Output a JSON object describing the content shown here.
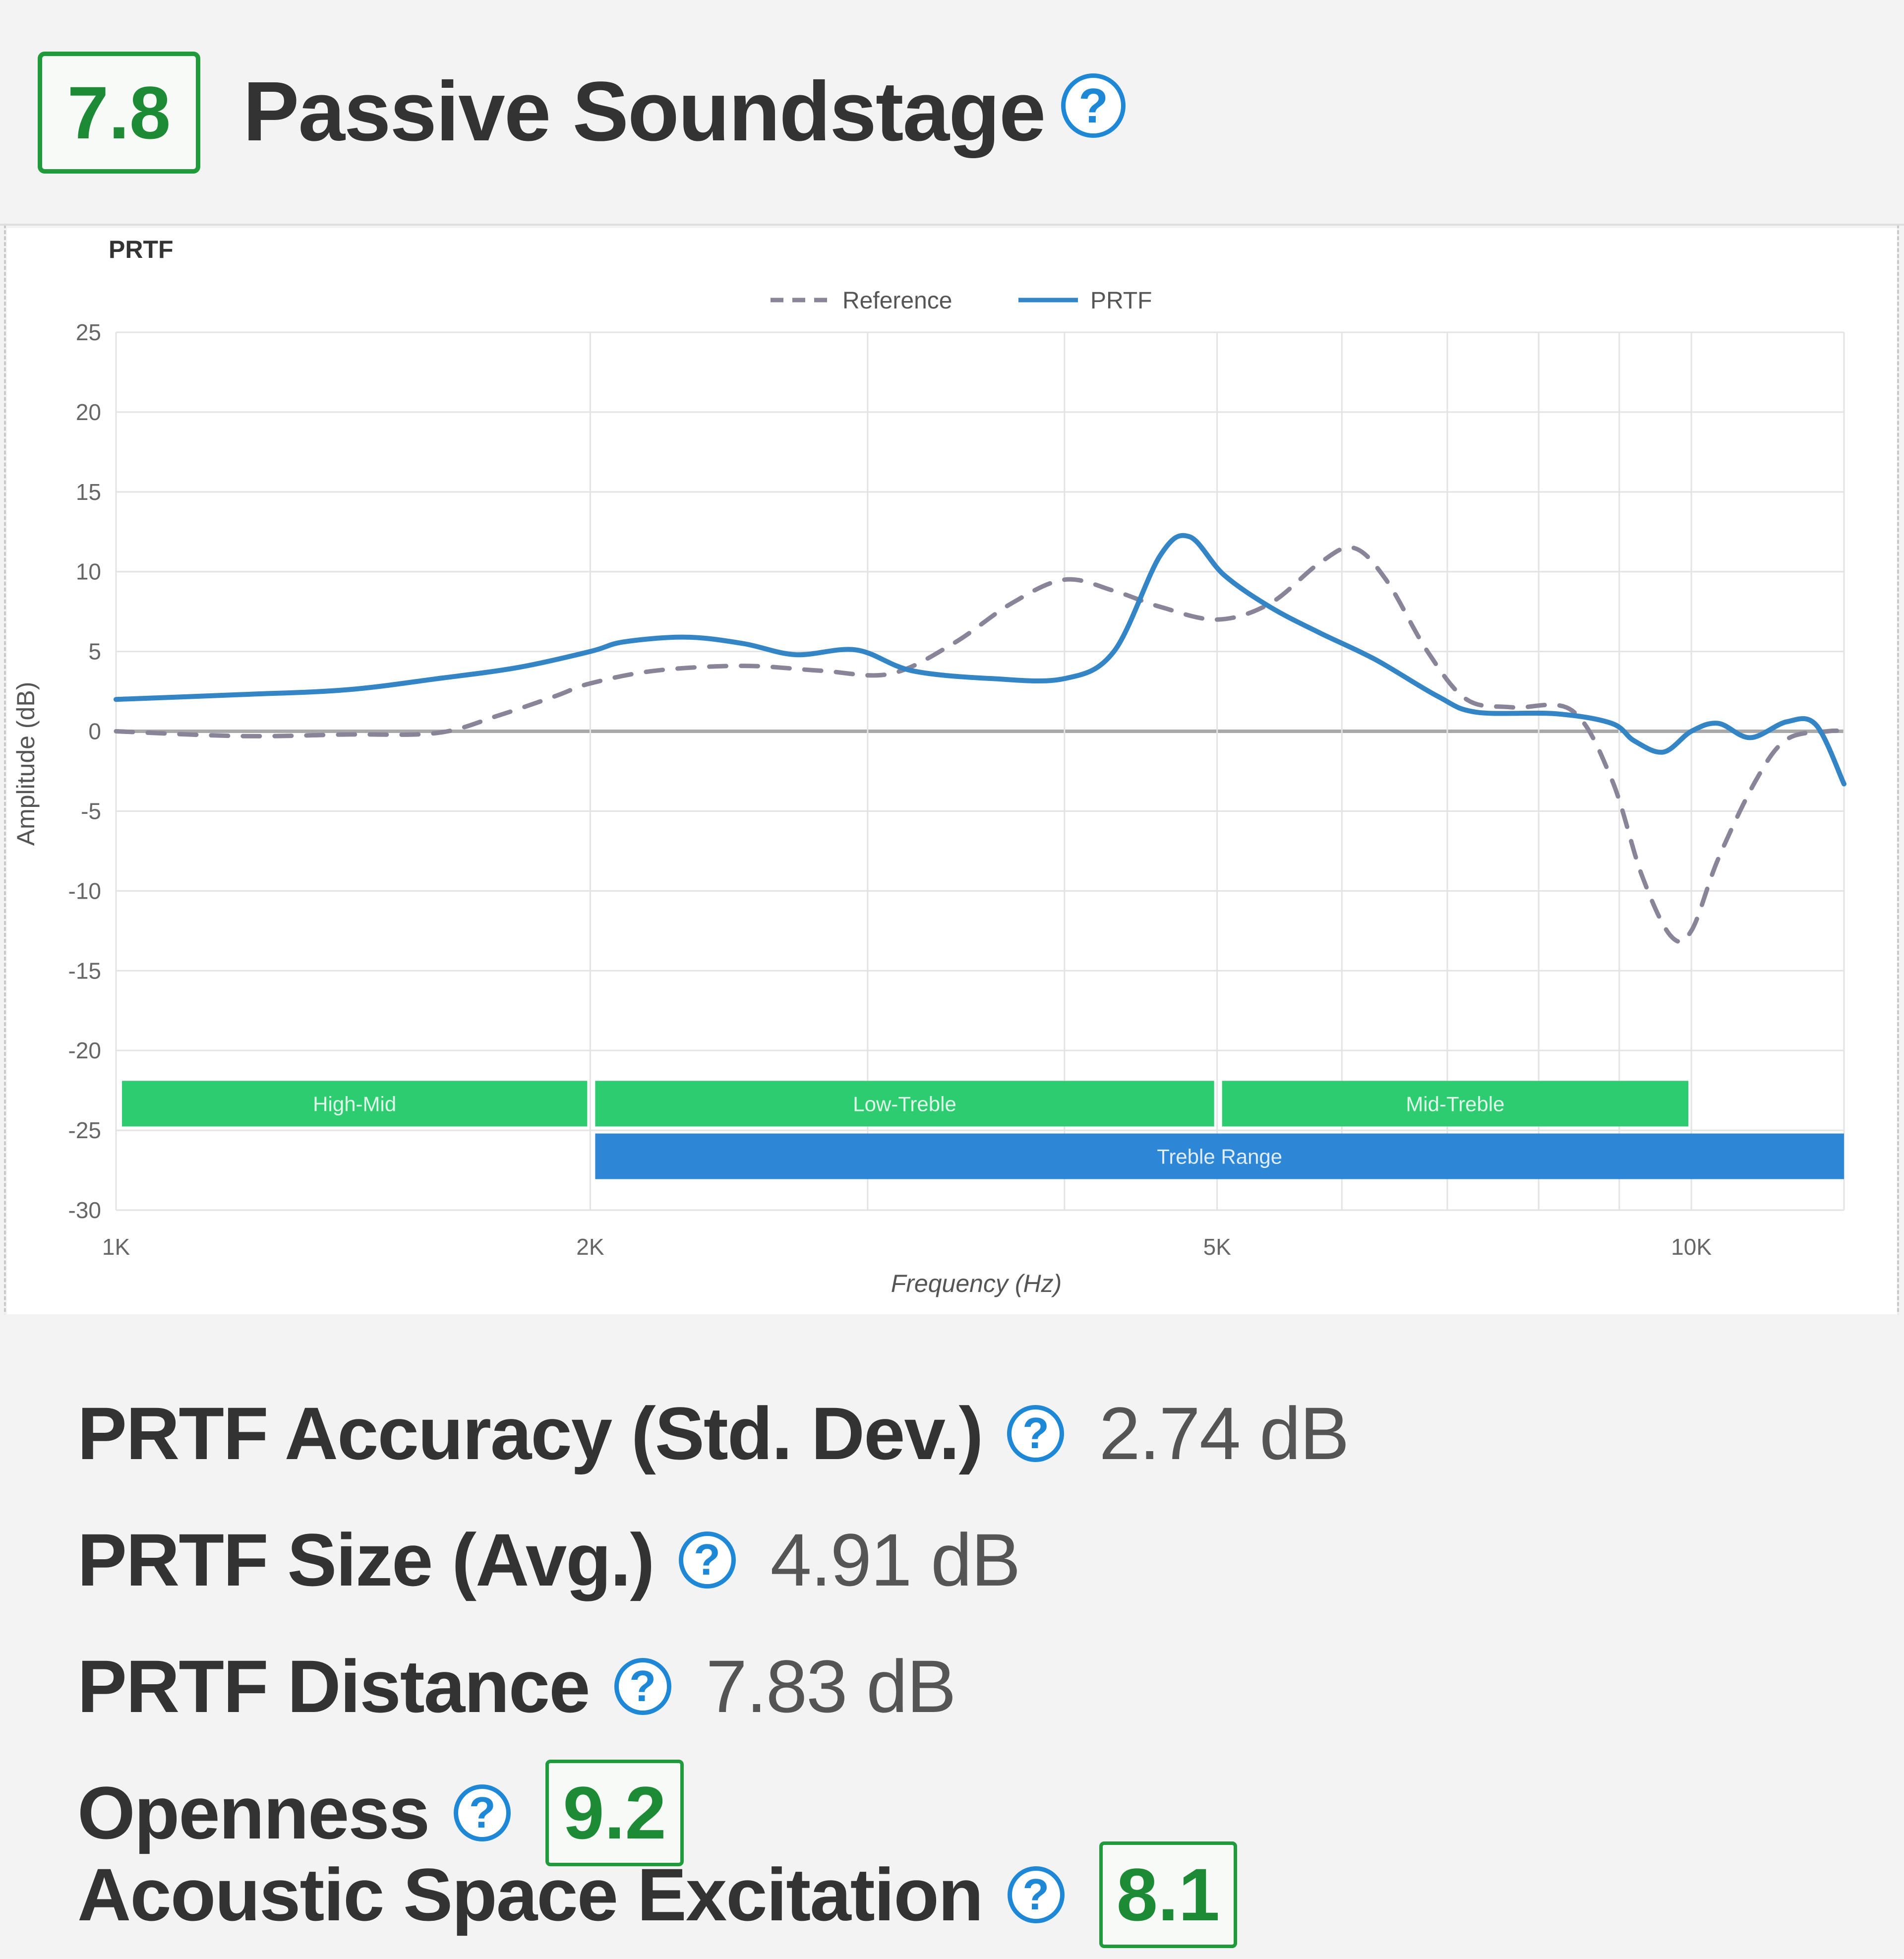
{
  "section": {
    "score": "7.8",
    "title": "Passive Soundstage",
    "help_glyph": "?"
  },
  "chart_data": {
    "type": "line",
    "title": "PRTF",
    "xlabel": "Frequency (Hz)",
    "ylabel": "Amplitude (dB)",
    "x_scale": "log",
    "xlim": [
      1000,
      12500
    ],
    "ylim": [
      -30,
      25
    ],
    "y_ticks": [
      25,
      20,
      15,
      10,
      5,
      0,
      -5,
      -10,
      -15,
      -20,
      -25,
      -30
    ],
    "x_tick_labels": [
      {
        "value": 1000,
        "label": "1K"
      },
      {
        "value": 2000,
        "label": "2K"
      },
      {
        "value": 5000,
        "label": "5K"
      },
      {
        "value": 10000,
        "label": "10K"
      }
    ],
    "x_grid": [
      1000,
      2000,
      3000,
      4000,
      5000,
      6000,
      7000,
      8000,
      9000,
      10000,
      12500
    ],
    "grid": true,
    "legend": {
      "position": "top-center",
      "entries": [
        "Reference",
        "PRTF"
      ]
    },
    "series": [
      {
        "name": "Reference",
        "style": "dashed",
        "color": "#8a8499",
        "points": [
          [
            1000,
            0
          ],
          [
            1200,
            -0.3
          ],
          [
            1400,
            -0.2
          ],
          [
            1600,
            -0.1
          ],
          [
            1750,
            1
          ],
          [
            1900,
            2.2
          ],
          [
            2000,
            3
          ],
          [
            2200,
            3.8
          ],
          [
            2500,
            4.1
          ],
          [
            2800,
            3.8
          ],
          [
            3100,
            3.6
          ],
          [
            3400,
            5.5
          ],
          [
            3700,
            8
          ],
          [
            4000,
            9.5
          ],
          [
            4300,
            8.8
          ],
          [
            4600,
            7.8
          ],
          [
            5000,
            7
          ],
          [
            5400,
            8
          ],
          [
            5800,
            10.5
          ],
          [
            6100,
            11.5
          ],
          [
            6400,
            9.5
          ],
          [
            6800,
            5
          ],
          [
            7200,
            2
          ],
          [
            7700,
            1.5
          ],
          [
            8400,
            1.3
          ],
          [
            8900,
            -3
          ],
          [
            9300,
            -9
          ],
          [
            9700,
            -12.8
          ],
          [
            10000,
            -12.5
          ],
          [
            10400,
            -8
          ],
          [
            11000,
            -3
          ],
          [
            11500,
            -0.5
          ],
          [
            12200,
            0
          ],
          [
            12500,
            0
          ]
        ]
      },
      {
        "name": "PRTF",
        "style": "solid",
        "color": "#3385c6",
        "points": [
          [
            1000,
            2
          ],
          [
            1200,
            2.3
          ],
          [
            1400,
            2.6
          ],
          [
            1600,
            3.3
          ],
          [
            1800,
            4
          ],
          [
            2000,
            5
          ],
          [
            2100,
            5.6
          ],
          [
            2300,
            5.9
          ],
          [
            2500,
            5.5
          ],
          [
            2700,
            4.8
          ],
          [
            2950,
            5.1
          ],
          [
            3200,
            3.8
          ],
          [
            3600,
            3.3
          ],
          [
            4000,
            3.3
          ],
          [
            4300,
            5
          ],
          [
            4600,
            11
          ],
          [
            4800,
            12.2
          ],
          [
            5050,
            9.8
          ],
          [
            5400,
            7.8
          ],
          [
            5800,
            6.2
          ],
          [
            6300,
            4.5
          ],
          [
            6900,
            2.2
          ],
          [
            7300,
            1.2
          ],
          [
            8200,
            1.1
          ],
          [
            8900,
            0.5
          ],
          [
            9200,
            -0.6
          ],
          [
            9600,
            -1.3
          ],
          [
            10000,
            0
          ],
          [
            10400,
            0.5
          ],
          [
            10900,
            -0.4
          ],
          [
            11500,
            0.6
          ],
          [
            12000,
            0.4
          ],
          [
            12500,
            -3.3
          ]
        ]
      }
    ],
    "bands": [
      {
        "label": "High-Mid",
        "from": 1000,
        "to": 2000,
        "row": 1,
        "color": "#2ecc71"
      },
      {
        "label": "Low-Treble",
        "from": 2000,
        "to": 5000,
        "row": 1,
        "color": "#2ecc71"
      },
      {
        "label": "Mid-Treble",
        "from": 5000,
        "to": 10000,
        "row": 1,
        "color": "#2ecc71"
      },
      {
        "label": "Treble Range",
        "from": 2000,
        "to": 12500,
        "row": 2,
        "color": "#2d86d6"
      }
    ]
  },
  "metrics": [
    {
      "label": "PRTF Accuracy (Std. Dev.)",
      "value": "2.74 dB"
    },
    {
      "label": "PRTF Size (Avg.)",
      "value": "4.91 dB"
    },
    {
      "label": "PRTF Distance",
      "value": "7.83 dB"
    },
    {
      "label": "Openness",
      "score": "9.2"
    },
    {
      "label": "Acoustic Space Excitation",
      "score": "8.1"
    }
  ]
}
